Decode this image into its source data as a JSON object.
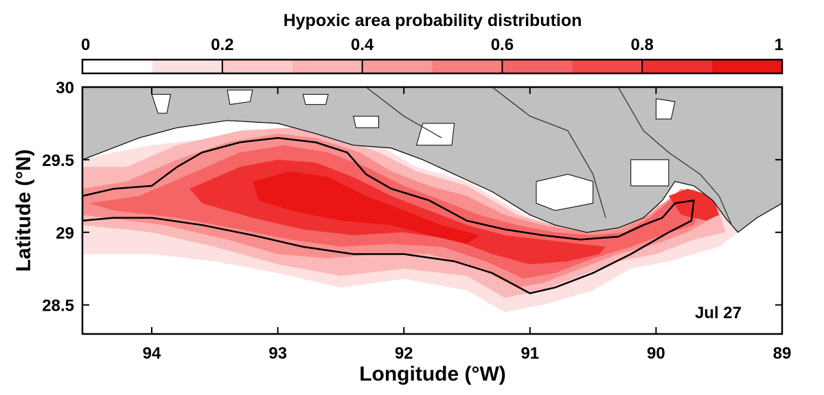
{
  "colorbar": {
    "title": "Hypoxic area probability distribution",
    "tick_labels": [
      "0",
      "0.2",
      "0.4",
      "0.6",
      "0.8",
      "1"
    ],
    "ticks": [
      0,
      0.2,
      0.4,
      0.6,
      0.8,
      1
    ],
    "levels": [
      0,
      0.1,
      0.2,
      0.3,
      0.4,
      0.5,
      0.6,
      0.7,
      0.8,
      0.9,
      1.0
    ],
    "colors": [
      "#ffffff",
      "#fde0e0",
      "#fccaca",
      "#fbb4b4",
      "#f99a9a",
      "#f78080",
      "#f56565",
      "#f24a4a",
      "#ef3030",
      "#ea1515"
    ]
  },
  "map": {
    "xlabel": "Longitude (°W)",
    "ylabel": "Latitude (°N)",
    "date_label": "Jul 27",
    "xlim": [
      94.55,
      89.0
    ],
    "ylim": [
      28.3,
      30.0
    ],
    "x_ticks": [
      94,
      93,
      92,
      91,
      90,
      89
    ],
    "x_tick_labels": [
      "94",
      "93",
      "92",
      "91",
      "90",
      "89"
    ],
    "y_ticks": [
      30,
      29.5,
      29,
      28.5
    ],
    "y_tick_labels": [
      "30",
      "29.5",
      "29",
      "28.5"
    ],
    "land_color": "#c0c0c0",
    "contour_color": "#000000",
    "hypoxia_layers": [
      {
        "level": 0.1,
        "color": "#fde0e0",
        "polygon": [
          [
            94.55,
            29.5
          ],
          [
            94.3,
            29.55
          ],
          [
            94.0,
            29.6
          ],
          [
            93.5,
            29.65
          ],
          [
            93.0,
            29.72
          ],
          [
            92.5,
            29.68
          ],
          [
            92.2,
            29.6
          ],
          [
            91.9,
            29.45
          ],
          [
            91.5,
            29.35
          ],
          [
            91.0,
            29.1
          ],
          [
            90.85,
            29.05
          ],
          [
            90.5,
            29.05
          ],
          [
            90.2,
            29.1
          ],
          [
            89.9,
            29.2
          ],
          [
            89.7,
            29.3
          ],
          [
            89.5,
            29.2
          ],
          [
            89.35,
            29.0
          ],
          [
            89.5,
            28.9
          ],
          [
            89.7,
            28.85
          ],
          [
            89.9,
            28.8
          ],
          [
            90.2,
            28.75
          ],
          [
            90.5,
            28.6
          ],
          [
            90.9,
            28.5
          ],
          [
            91.2,
            28.45
          ],
          [
            91.5,
            28.6
          ],
          [
            92.0,
            28.68
          ],
          [
            92.5,
            28.62
          ],
          [
            93.0,
            28.72
          ],
          [
            93.5,
            28.8
          ],
          [
            94.0,
            28.85
          ],
          [
            94.55,
            28.85
          ]
        ]
      },
      {
        "level": 0.2,
        "color": "#fbb8b8",
        "polygon": [
          [
            94.55,
            29.45
          ],
          [
            94.2,
            29.45
          ],
          [
            93.8,
            29.6
          ],
          [
            93.3,
            29.7
          ],
          [
            92.9,
            29.72
          ],
          [
            92.5,
            29.65
          ],
          [
            92.2,
            29.55
          ],
          [
            91.9,
            29.42
          ],
          [
            91.5,
            29.32
          ],
          [
            91.1,
            29.12
          ],
          [
            90.8,
            29.05
          ],
          [
            90.5,
            29.05
          ],
          [
            90.2,
            29.1
          ],
          [
            89.95,
            29.2
          ],
          [
            89.7,
            29.3
          ],
          [
            89.5,
            29.15
          ],
          [
            89.45,
            29.0
          ],
          [
            89.7,
            28.95
          ],
          [
            90.0,
            28.85
          ],
          [
            90.3,
            28.8
          ],
          [
            90.6,
            28.7
          ],
          [
            90.9,
            28.6
          ],
          [
            91.2,
            28.55
          ],
          [
            91.5,
            28.7
          ],
          [
            92.0,
            28.75
          ],
          [
            92.5,
            28.7
          ],
          [
            93.0,
            28.78
          ],
          [
            93.5,
            28.9
          ],
          [
            94.0,
            29.0
          ],
          [
            94.55,
            29.05
          ]
        ]
      },
      {
        "level": 0.4,
        "color": "#f88f8f",
        "polygon": [
          [
            94.55,
            29.3
          ],
          [
            94.2,
            29.35
          ],
          [
            93.8,
            29.5
          ],
          [
            93.4,
            29.62
          ],
          [
            93.0,
            29.68
          ],
          [
            92.7,
            29.65
          ],
          [
            92.35,
            29.55
          ],
          [
            92.1,
            29.42
          ],
          [
            91.8,
            29.32
          ],
          [
            91.5,
            29.25
          ],
          [
            91.2,
            29.12
          ],
          [
            90.9,
            29.05
          ],
          [
            90.55,
            29.0
          ],
          [
            90.3,
            29.02
          ],
          [
            90.05,
            29.12
          ],
          [
            89.8,
            29.3
          ],
          [
            89.6,
            29.25
          ],
          [
            89.55,
            29.1
          ],
          [
            89.75,
            29.0
          ],
          [
            90.0,
            28.92
          ],
          [
            90.3,
            28.85
          ],
          [
            90.6,
            28.75
          ],
          [
            90.9,
            28.65
          ],
          [
            91.1,
            28.62
          ],
          [
            91.4,
            28.75
          ],
          [
            91.8,
            28.85
          ],
          [
            92.2,
            28.85
          ],
          [
            92.6,
            28.82
          ],
          [
            93.0,
            28.85
          ],
          [
            93.4,
            28.95
          ],
          [
            93.9,
            29.05
          ],
          [
            94.55,
            29.12
          ]
        ]
      },
      {
        "level": 0.6,
        "color": "#f56565",
        "polygon": [
          [
            94.5,
            29.2
          ],
          [
            94.1,
            29.25
          ],
          [
            93.7,
            29.4
          ],
          [
            93.3,
            29.55
          ],
          [
            92.95,
            29.6
          ],
          [
            92.6,
            29.55
          ],
          [
            92.3,
            29.45
          ],
          [
            92.0,
            29.32
          ],
          [
            91.7,
            29.22
          ],
          [
            91.4,
            29.12
          ],
          [
            91.1,
            29.05
          ],
          [
            90.8,
            29.0
          ],
          [
            90.5,
            28.98
          ],
          [
            90.25,
            29.0
          ],
          [
            90.05,
            29.1
          ],
          [
            89.85,
            29.25
          ],
          [
            89.65,
            29.2
          ],
          [
            89.7,
            29.05
          ],
          [
            89.95,
            28.98
          ],
          [
            90.2,
            28.9
          ],
          [
            90.5,
            28.82
          ],
          [
            90.8,
            28.72
          ],
          [
            91.05,
            28.68
          ],
          [
            91.35,
            28.8
          ],
          [
            91.7,
            28.9
          ],
          [
            92.1,
            28.92
          ],
          [
            92.5,
            28.9
          ],
          [
            92.9,
            28.95
          ],
          [
            93.3,
            29.02
          ],
          [
            93.8,
            29.1
          ],
          [
            94.3,
            29.15
          ]
        ]
      },
      {
        "level": 0.8,
        "color": "#ef3030",
        "polygon": [
          [
            93.7,
            29.3
          ],
          [
            93.3,
            29.45
          ],
          [
            93.0,
            29.5
          ],
          [
            92.7,
            29.48
          ],
          [
            92.4,
            29.38
          ],
          [
            92.1,
            29.25
          ],
          [
            91.8,
            29.15
          ],
          [
            91.5,
            29.05
          ],
          [
            91.2,
            28.98
          ],
          [
            90.9,
            28.95
          ],
          [
            90.6,
            28.92
          ],
          [
            90.4,
            28.9
          ],
          [
            90.45,
            28.85
          ],
          [
            90.7,
            28.8
          ],
          [
            91.0,
            28.78
          ],
          [
            91.3,
            28.85
          ],
          [
            91.6,
            28.95
          ],
          [
            92.0,
            29.0
          ],
          [
            92.4,
            28.98
          ],
          [
            92.8,
            29.02
          ],
          [
            93.2,
            29.1
          ],
          [
            93.6,
            29.2
          ]
        ]
      },
      {
        "level": 0.9,
        "color": "#ea1515",
        "polygon": [
          [
            93.2,
            29.35
          ],
          [
            92.9,
            29.42
          ],
          [
            92.6,
            29.38
          ],
          [
            92.3,
            29.25
          ],
          [
            92.0,
            29.15
          ],
          [
            91.7,
            29.05
          ],
          [
            91.4,
            28.98
          ],
          [
            91.5,
            28.92
          ],
          [
            91.8,
            28.98
          ],
          [
            92.1,
            29.05
          ],
          [
            92.5,
            29.08
          ],
          [
            92.9,
            29.15
          ],
          [
            93.15,
            29.22
          ]
        ]
      },
      {
        "level": 0.8,
        "color": "#ef3030",
        "polygon": [
          [
            89.9,
            29.25
          ],
          [
            89.75,
            29.3
          ],
          [
            89.55,
            29.25
          ],
          [
            89.5,
            29.12
          ],
          [
            89.6,
            29.08
          ],
          [
            89.8,
            29.12
          ]
        ]
      }
    ],
    "contour_50": [
      [
        94.55,
        29.25
      ],
      [
        94.3,
        29.3
      ],
      [
        94.0,
        29.32
      ],
      [
        93.8,
        29.45
      ],
      [
        93.6,
        29.55
      ],
      [
        93.3,
        29.62
      ],
      [
        93.0,
        29.65
      ],
      [
        92.7,
        29.62
      ],
      [
        92.45,
        29.55
      ],
      [
        92.3,
        29.4
      ],
      [
        92.1,
        29.3
      ],
      [
        91.8,
        29.22
      ],
      [
        91.5,
        29.08
      ],
      [
        91.2,
        29.02
      ],
      [
        90.9,
        28.98
      ],
      [
        90.6,
        28.95
      ],
      [
        90.3,
        28.97
      ],
      [
        90.1,
        29.05
      ],
      [
        89.95,
        29.1
      ],
      [
        89.85,
        29.2
      ],
      [
        89.7,
        29.22
      ],
      [
        89.72,
        29.08
      ],
      [
        89.9,
        29.0
      ],
      [
        90.2,
        28.85
      ],
      [
        90.5,
        28.72
      ],
      [
        90.8,
        28.62
      ],
      [
        91.0,
        28.58
      ],
      [
        91.3,
        28.72
      ],
      [
        91.6,
        28.8
      ],
      [
        92.0,
        28.85
      ],
      [
        92.4,
        28.85
      ],
      [
        92.8,
        28.9
      ],
      [
        93.2,
        28.98
      ],
      [
        93.6,
        29.05
      ],
      [
        94.0,
        29.1
      ],
      [
        94.3,
        29.1
      ],
      [
        94.55,
        29.08
      ]
    ],
    "land": [
      [
        94.55,
        30.0
      ],
      [
        89.0,
        30.0
      ],
      [
        89.0,
        29.2
      ],
      [
        89.2,
        29.1
      ],
      [
        89.35,
        29.0
      ],
      [
        89.45,
        29.1
      ],
      [
        89.55,
        29.22
      ],
      [
        89.7,
        29.32
      ],
      [
        89.85,
        29.35
      ],
      [
        89.95,
        29.22
      ],
      [
        90.1,
        29.1
      ],
      [
        90.3,
        29.03
      ],
      [
        90.55,
        29.0
      ],
      [
        90.8,
        29.05
      ],
      [
        91.0,
        29.12
      ],
      [
        91.3,
        29.28
      ],
      [
        91.6,
        29.4
      ],
      [
        91.85,
        29.5
      ],
      [
        92.1,
        29.58
      ],
      [
        92.4,
        29.6
      ],
      [
        92.7,
        29.68
      ],
      [
        93.0,
        29.75
      ],
      [
        93.4,
        29.77
      ],
      [
        93.8,
        29.72
      ],
      [
        94.1,
        29.65
      ],
      [
        94.4,
        29.55
      ],
      [
        94.55,
        29.5
      ]
    ],
    "lakes": [
      [
        [
          94.0,
          29.95
        ],
        [
          93.85,
          29.95
        ],
        [
          93.88,
          29.82
        ],
        [
          93.95,
          29.82
        ]
      ],
      [
        [
          93.4,
          29.98
        ],
        [
          93.2,
          29.98
        ],
        [
          93.22,
          29.9
        ],
        [
          93.38,
          29.88
        ]
      ],
      [
        [
          92.8,
          29.95
        ],
        [
          92.6,
          29.95
        ],
        [
          92.62,
          29.88
        ],
        [
          92.78,
          29.88
        ]
      ],
      [
        [
          92.4,
          29.8
        ],
        [
          92.2,
          29.8
        ],
        [
          92.2,
          29.72
        ],
        [
          92.38,
          29.72
        ]
      ],
      [
        [
          91.85,
          29.75
        ],
        [
          91.6,
          29.75
        ],
        [
          91.62,
          29.6
        ],
        [
          91.9,
          29.6
        ]
      ],
      [
        [
          90.0,
          29.92
        ],
        [
          89.85,
          29.9
        ],
        [
          89.88,
          29.78
        ],
        [
          90.0,
          29.78
        ]
      ],
      [
        [
          90.2,
          29.5
        ],
        [
          89.9,
          29.5
        ],
        [
          89.9,
          29.32
        ],
        [
          90.2,
          29.32
        ]
      ],
      [
        [
          90.95,
          29.35
        ],
        [
          90.7,
          29.4
        ],
        [
          90.5,
          29.35
        ],
        [
          90.5,
          29.2
        ],
        [
          90.8,
          29.15
        ],
        [
          90.95,
          29.2
        ]
      ]
    ],
    "rivers": [
      [
        [
          91.3,
          30.0
        ],
        [
          91.0,
          29.8
        ],
        [
          90.7,
          29.7
        ],
        [
          90.5,
          29.4
        ],
        [
          90.4,
          29.1
        ]
      ],
      [
        [
          90.3,
          30.0
        ],
        [
          90.1,
          29.7
        ],
        [
          89.9,
          29.55
        ],
        [
          89.65,
          29.4
        ],
        [
          89.5,
          29.25
        ],
        [
          89.4,
          29.05
        ]
      ],
      [
        [
          92.3,
          30.0
        ],
        [
          92.0,
          29.8
        ],
        [
          91.7,
          29.65
        ]
      ]
    ]
  }
}
